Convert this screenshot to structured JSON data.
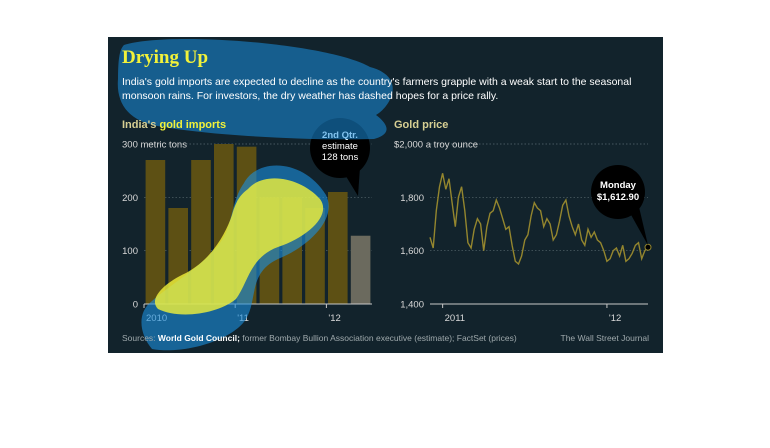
{
  "graphic": {
    "title": "Drying Up",
    "subtitle": "India's gold imports are expected to decline as the country's farmers grapple with a weak start to the seasonal monsoon rains. For investors, the dry weather has dashed hopes for a price rally.",
    "source_prefix": "Sources: ",
    "source_highlight": "World Gold Council;",
    "source_rest": " former Bombay Bullion Association executive (estimate); FactSet (prices)",
    "credit": "The Wall Street Journal",
    "colors": {
      "background": "#12232c",
      "bars": "#5d5014",
      "estimate_bar": "#6b6a5e",
      "line": "#94862e",
      "highlight_yellow": "#f2f23a",
      "highlight_blue": "#1a8fe0"
    }
  },
  "chart_data": [
    {
      "type": "bar",
      "title_prefix": "India's ",
      "title_highlight": "gold imports",
      "unit_label": "300 metric tons",
      "ylim": [
        0,
        300
      ],
      "yticks": [
        0,
        100,
        200,
        300
      ],
      "ytick_labels": [
        "0",
        "100",
        "200",
        ""
      ],
      "x_labels": [
        "2010",
        "'11",
        "'12"
      ],
      "x_label_positions": [
        0,
        4,
        8
      ],
      "values": [
        270,
        180,
        270,
        300,
        295,
        200,
        200,
        180,
        210,
        128
      ],
      "estimate_index": 9,
      "callout": [
        "2nd Qtr.",
        "estimate",
        "128 tons"
      ]
    },
    {
      "type": "line",
      "title": "Gold price",
      "unit_label": "$2,000 a troy ounce",
      "ylim": [
        1400,
        2000
      ],
      "yticks": [
        1400,
        1600,
        1800,
        2000
      ],
      "ytick_labels": [
        "1,400",
        "1,600",
        "1,800",
        ""
      ],
      "x_labels": [
        "2011",
        "'12"
      ],
      "x_label_positions": [
        4,
        56
      ],
      "values": [
        1650,
        1610,
        1750,
        1840,
        1890,
        1830,
        1870,
        1780,
        1690,
        1800,
        1840,
        1750,
        1630,
        1610,
        1680,
        1720,
        1700,
        1600,
        1690,
        1740,
        1750,
        1790,
        1760,
        1720,
        1680,
        1690,
        1620,
        1560,
        1550,
        1580,
        1640,
        1660,
        1730,
        1780,
        1760,
        1750,
        1690,
        1720,
        1700,
        1640,
        1660,
        1710,
        1770,
        1790,
        1730,
        1690,
        1660,
        1700,
        1640,
        1620,
        1680,
        1650,
        1670,
        1640,
        1630,
        1600,
        1560,
        1570,
        1600,
        1610,
        1580,
        1620,
        1560,
        1570,
        1590,
        1620,
        1630,
        1570,
        1600,
        1612.9
      ],
      "callout": [
        "Monday",
        "$1,612.90"
      ]
    }
  ]
}
